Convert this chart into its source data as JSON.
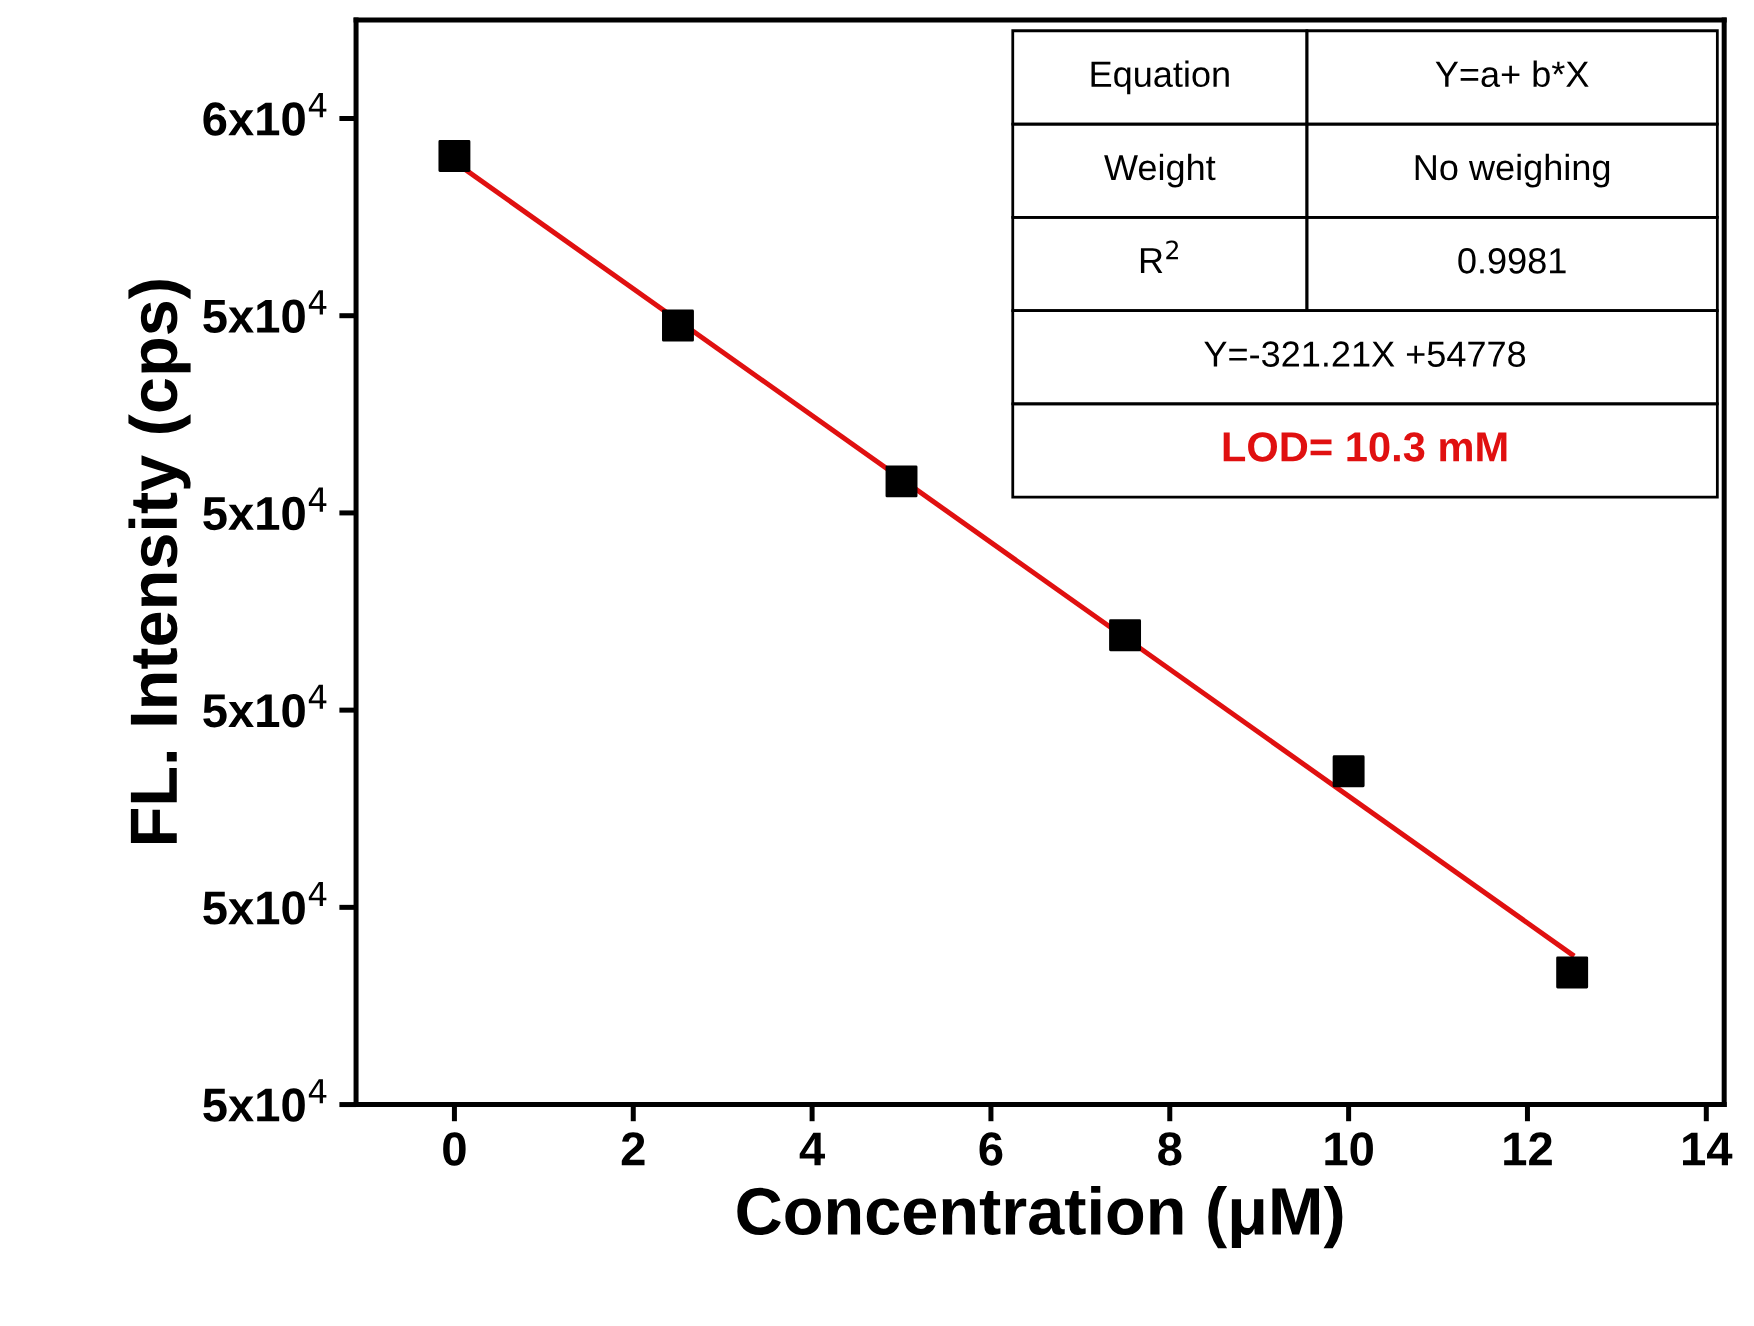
{
  "chart_data": {
    "type": "scatter",
    "xlabel": "Concentration (μM)",
    "ylabel": "FL. Intensity (cps)",
    "x": [
      0,
      2.5,
      5,
      7.5,
      10,
      12.5
    ],
    "series": [
      {
        "color": "#000000",
        "marker": "square",
        "values": [
          54810,
          53950,
          53160,
          52380,
          51690,
          50670
        ]
      },
      {
        "type": "line",
        "color": "#e01010",
        "x": [
          0,
          12.5
        ],
        "values": [
          54780,
          50760
        ],
        "marker": "none",
        "line_style": "solid"
      }
    ],
    "xlim": [
      -1.1,
      14.2
    ],
    "xticks": [
      0,
      2,
      4,
      6,
      8,
      10,
      12,
      14
    ],
    "ylim": [
      50000,
      55500
    ],
    "yticks": [
      {
        "value": 50000,
        "label": "5x10$^{4}$"
      },
      {
        "value": 51000,
        "label": "5x10$^{4}$"
      },
      {
        "value": 52000,
        "label": "5x10$^{4}$"
      },
      {
        "value": 53000,
        "label": "5x10$^{4}$"
      },
      {
        "value": 54000,
        "label": "5x10$^{4}$"
      },
      {
        "value": 55000,
        "label": "6x10$^{4}$"
      }
    ],
    "annotations": [
      "Equation",
      "Y=a+ b*X",
      "Weight",
      "No weighing",
      "R$^{2}$",
      "0.9981",
      "Y=-321.21X +54778",
      "LOD= 10.3 mM"
    ],
    "grid": false,
    "legend": false
  }
}
